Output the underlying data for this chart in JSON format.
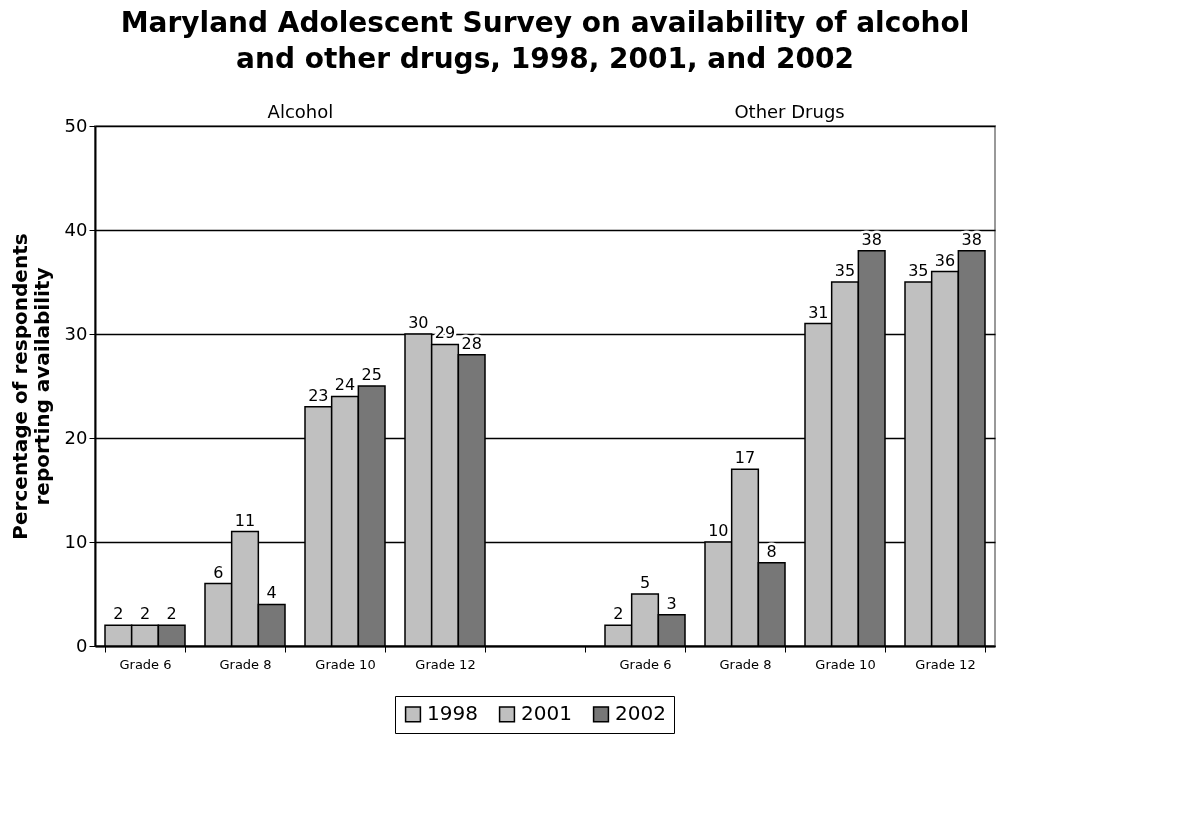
{
  "chart_data": {
    "type": "bar",
    "title": "Maryland Adolescent Survey on availability of alcohol and other drugs, 1998, 2001, and 2002",
    "ylabel": "Percentage of respondents reporting availability",
    "annotations": [
      "Alcohol",
      "Other Drugs"
    ],
    "categories": [
      "Grade 6",
      "Grade 8",
      "Grade 10",
      "Grade 12",
      null,
      "Grade 6",
      "Grade 8",
      "Grade 10",
      "Grade 12"
    ],
    "series": [
      {
        "name": "1998",
        "color": "#c0c0c0",
        "values": [
          2,
          6,
          23,
          30,
          null,
          2,
          10,
          31,
          35
        ]
      },
      {
        "name": "2001",
        "color": "#c0c0c0",
        "values": [
          2,
          11,
          24,
          29,
          null,
          5,
          17,
          35,
          36
        ]
      },
      {
        "name": "2002",
        "color": "#777777",
        "values": [
          2,
          4,
          25,
          28,
          null,
          3,
          8,
          38,
          38
        ]
      }
    ],
    "ylim": [
      0,
      50
    ],
    "yticks": [
      0,
      10,
      20,
      30,
      40,
      50
    ],
    "grid": "y",
    "legend": "bottom",
    "data_labels": true
  }
}
